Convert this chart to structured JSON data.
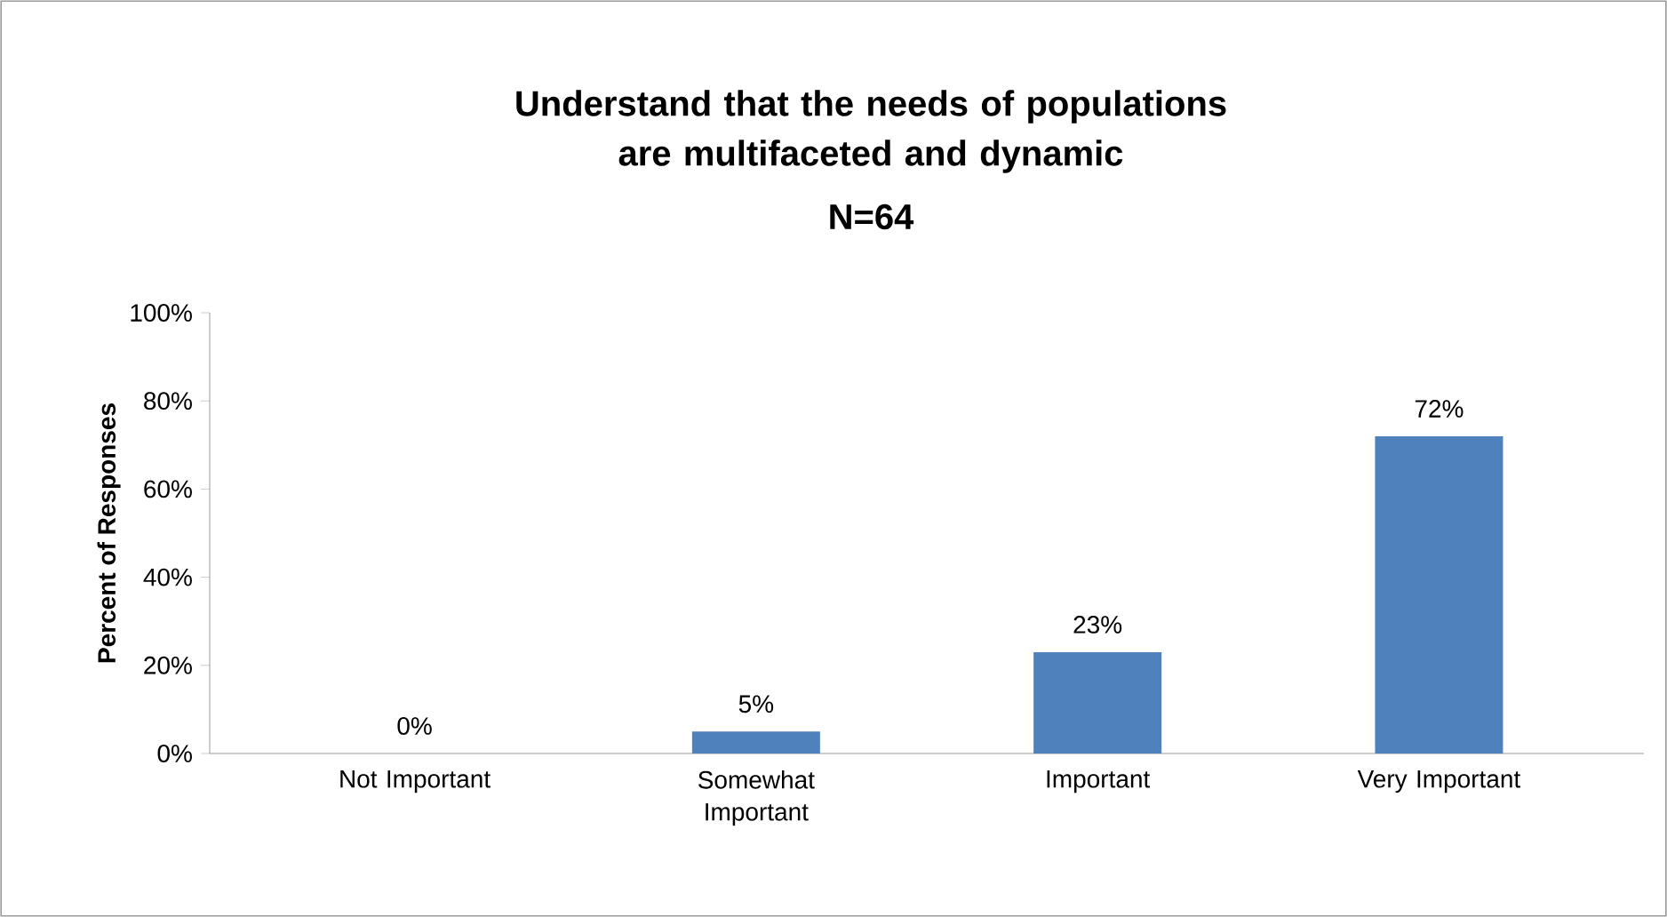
{
  "chart_data": {
    "type": "bar",
    "title": "Understand that the needs of populations are multifaceted and dynamic",
    "subtitle": "N=64",
    "ylabel": "Percent of Responses",
    "categories": [
      "Not Important",
      "Somewhat Important",
      "Important",
      "Very Important"
    ],
    "values": [
      0,
      5,
      23,
      72
    ],
    "value_labels": [
      "0%",
      "5%",
      "23%",
      "72%"
    ],
    "color": "#4f81bd",
    "ylim": [
      0,
      100
    ],
    "yticks": [
      {
        "value": 0,
        "label": "0%"
      },
      {
        "value": 20,
        "label": "20%"
      },
      {
        "value": 40,
        "label": "40%"
      },
      {
        "value": 60,
        "label": "60%"
      },
      {
        "value": 80,
        "label": "80%"
      },
      {
        "value": 100,
        "label": "100%"
      }
    ],
    "grid": false
  }
}
